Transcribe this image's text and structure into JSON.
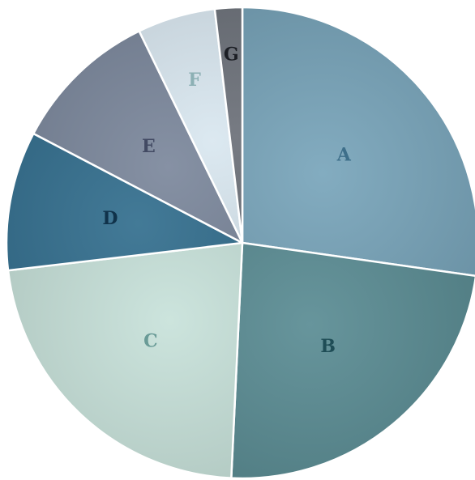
{
  "chart_data": {
    "type": "pie",
    "title": "",
    "start_angle_deg": 0,
    "direction": "clockwise",
    "slices": [
      {
        "label": "A",
        "value": 29.1,
        "color": "#78a5ba",
        "label_color": "#3e6f8a"
      },
      {
        "label": "B",
        "value": 25.1,
        "color": "#5a8c93",
        "label_color": "#1f4d56"
      },
      {
        "label": "C",
        "value": 23.9,
        "color": "#c8e2da",
        "label_color": "#6a9b97"
      },
      {
        "label": "D",
        "value": 10.2,
        "color": "#336e8e",
        "label_color": "#10324a"
      },
      {
        "label": "E",
        "value": 10.8,
        "color": "#7b879c",
        "label_color": "#424a63"
      },
      {
        "label": "F",
        "value": 5.7,
        "color": "#d9e7f0",
        "label_color": "#8cb0b4"
      },
      {
        "label": "G",
        "value": 2.0,
        "color": "#6b7078",
        "label_color": "#1c1f25"
      }
    ]
  }
}
